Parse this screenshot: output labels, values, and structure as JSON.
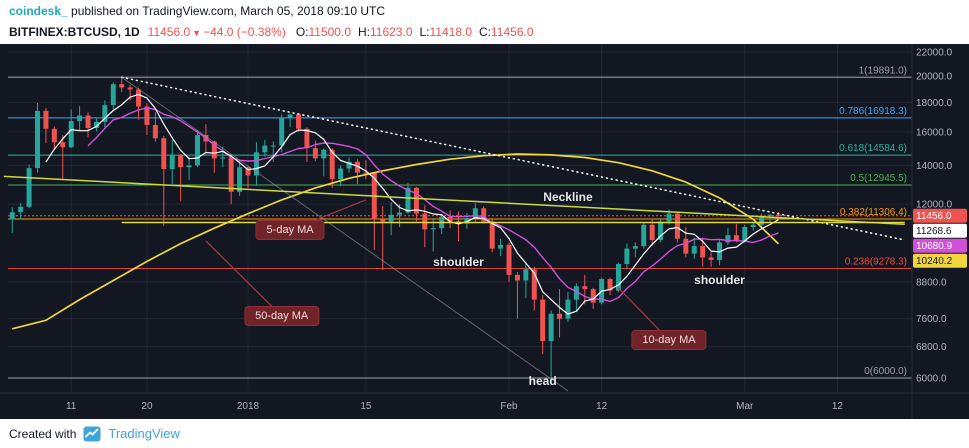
{
  "attribution": {
    "author": "coindesk_",
    "text": " published on TradingView.com, March 05, 2018 09:10 UTC"
  },
  "legend": {
    "symbol": "BITFINEX:BTCUSD, 1D",
    "last": "11456.0",
    "direction": "▼",
    "change": "−44.0 (−0.38%)",
    "ohlc": [
      {
        "label": "O:",
        "value": "11500.0"
      },
      {
        "label": "H:",
        "value": "11623.0"
      },
      {
        "label": "L:",
        "value": "11418.0"
      },
      {
        "label": "C:",
        "value": "11456.0"
      }
    ]
  },
  "footer": {
    "created_with": "Created with",
    "brand": "TradingView"
  },
  "colors": {
    "chart_bg": "#131722",
    "panel_bg": "#ffffff",
    "axis_text": "#b2b5be",
    "grid": "rgba(255,255,255,0.07)",
    "up": "#26a69a",
    "down": "#ef5350",
    "author": "#1fa8bd",
    "brand_blue": "#41a3dc",
    "callout_bg": "#71232a",
    "pointer": "#9c3a3a",
    "annotation_text": "#e8eaed",
    "separator": "#2a2e39"
  },
  "chart_data": {
    "type": "candlestick",
    "symbol": "BITFINEX:BTCUSD",
    "interval": "1D",
    "price_scale": "logarithmic",
    "ylim": [
      5700,
      22400
    ],
    "price_axis": [
      {
        "label": "22000.0",
        "p": 22000
      },
      {
        "label": "20000.0",
        "p": 20000
      },
      {
        "label": "18000.0",
        "p": 18000
      },
      {
        "label": "16000.0",
        "p": 16000
      },
      {
        "label": "14000.0",
        "p": 14000
      },
      {
        "label": "12000.0",
        "p": 12000
      },
      {
        "label": "8800.0",
        "p": 8800
      },
      {
        "label": "7600.0",
        "p": 7600
      },
      {
        "label": "6800.0",
        "p": 6800
      },
      {
        "label": "6000.0",
        "p": 6000
      }
    ],
    "time_axis": [
      {
        "label": "11",
        "d": "2017-12-11"
      },
      {
        "label": "20",
        "d": "2017-12-20"
      },
      {
        "label": "2018",
        "d": "2018-01-01"
      },
      {
        "label": "15",
        "d": "2018-01-15"
      },
      {
        "label": "Feb",
        "d": "2018-02-01"
      },
      {
        "label": "12",
        "d": "2018-02-12"
      },
      {
        "label": "Mar",
        "d": "2018-03-01"
      },
      {
        "label": "12",
        "d": "2018-03-12"
      }
    ],
    "fib_levels": [
      {
        "level": "1",
        "price": 19891.0,
        "label": "1(19891.0)",
        "color": "#9aa0a6"
      },
      {
        "level": "0.786",
        "price": 16918.3,
        "label": "0.786(16918.3)",
        "color": "#42a5f5"
      },
      {
        "level": "0.618",
        "price": 14584.6,
        "label": "0.618(14584.6)",
        "color": "#2bb3a0"
      },
      {
        "level": "0.5",
        "price": 12945.5,
        "label": "0.5(12945.5)",
        "color": "#4caf50"
      },
      {
        "level": "0.382",
        "price": 11306.4,
        "label": "0.382(11306.4)",
        "color": "#ff9800"
      },
      {
        "level": "0.236",
        "price": 9278.3,
        "label": "0.236(9278.3)",
        "color": "#ef4a3c"
      },
      {
        "level": "0",
        "price": 6000.0,
        "label": "0(6000.0)",
        "color": "#9aa0a6"
      }
    ],
    "last_price_line": {
      "price": 11456.0,
      "color": "#ef5350"
    },
    "candles": {
      "start": "2017-12-04",
      "ohlc": [
        [
          11280,
          11850,
          10700,
          11620
        ],
        [
          11620,
          12050,
          11300,
          11870
        ],
        [
          11870,
          14050,
          11800,
          13850
        ],
        [
          13850,
          17950,
          13600,
          17400
        ],
        [
          17400,
          17600,
          15300,
          16200
        ],
        [
          16200,
          16350,
          14950,
          15350
        ],
        [
          15350,
          15800,
          13200,
          15050
        ],
        [
          15050,
          17500,
          15000,
          16700
        ],
        [
          16700,
          17750,
          16100,
          17080
        ],
        [
          17080,
          17300,
          15670,
          16250
        ],
        [
          16250,
          16940,
          16030,
          16650
        ],
        [
          16650,
          18150,
          16300,
          17800
        ],
        [
          17800,
          19500,
          17500,
          19350
        ],
        [
          19350,
          19891,
          18750,
          19100
        ],
        [
          19100,
          19300,
          18150,
          18950
        ],
        [
          18950,
          19100,
          16800,
          17700
        ],
        [
          17700,
          17950,
          15800,
          16450
        ],
        [
          16450,
          17300,
          15400,
          15600
        ],
        [
          15600,
          15750,
          11000,
          13800
        ],
        [
          13800,
          15500,
          13000,
          14600
        ],
        [
          14600,
          14650,
          12160,
          13900
        ],
        [
          13900,
          14500,
          13200,
          14000
        ],
        [
          14000,
          16100,
          13900,
          15800
        ],
        [
          15800,
          16500,
          14700,
          15400
        ],
        [
          15400,
          15450,
          13600,
          14400
        ],
        [
          14400,
          15100,
          13900,
          14450
        ],
        [
          14450,
          14650,
          12000,
          12600
        ],
        [
          12600,
          14300,
          12400,
          13900
        ],
        [
          13900,
          13950,
          12800,
          13450
        ],
        [
          13450,
          15350,
          12950,
          14750
        ],
        [
          14750,
          15500,
          14500,
          15150
        ],
        [
          15150,
          15400,
          14200,
          15150
        ],
        [
          15150,
          17150,
          14750,
          16950
        ],
        [
          16950,
          17200,
          16300,
          17150
        ],
        [
          17150,
          17180,
          16000,
          16200
        ],
        [
          16200,
          16300,
          14200,
          15000
        ],
        [
          15000,
          15450,
          14250,
          14400
        ],
        [
          14400,
          14980,
          13400,
          14900
        ],
        [
          14900,
          15000,
          12800,
          13250
        ],
        [
          13250,
          14000,
          12900,
          13830
        ],
        [
          13830,
          14450,
          13600,
          14200
        ],
        [
          14200,
          14350,
          13000,
          13600
        ],
        [
          13600,
          14300,
          13250,
          13580
        ],
        [
          13580,
          13600,
          10000,
          11300
        ],
        [
          11300,
          11900,
          9222,
          11200
        ],
        [
          11200,
          12100,
          10600,
          11500
        ],
        [
          11500,
          12000,
          10950,
          11600
        ],
        [
          11600,
          13050,
          11550,
          12800
        ],
        [
          12800,
          12850,
          11200,
          11550
        ],
        [
          11550,
          11950,
          10100,
          10850
        ],
        [
          10850,
          11350,
          9927,
          10900
        ],
        [
          10900,
          11550,
          10650,
          11400
        ],
        [
          11400,
          11700,
          10900,
          11200
        ],
        [
          11200,
          11650,
          10350,
          11100
        ],
        [
          11100,
          11580,
          10880,
          11350
        ],
        [
          11350,
          12040,
          11200,
          11800
        ],
        [
          11800,
          11900,
          11100,
          11200
        ],
        [
          11200,
          11300,
          9900,
          10050
        ],
        [
          10050,
          10450,
          9750,
          10200
        ],
        [
          10200,
          10300,
          8800,
          9050
        ],
        [
          9050,
          9150,
          7600,
          8850
        ],
        [
          8850,
          9450,
          8250,
          9250
        ],
        [
          9250,
          9350,
          7850,
          8200
        ],
        [
          8200,
          8350,
          6600,
          6950
        ],
        [
          6950,
          7850,
          6000,
          7750
        ],
        [
          7750,
          8550,
          7050,
          7600
        ],
        [
          7600,
          8450,
          7500,
          8200
        ],
        [
          8200,
          8750,
          7800,
          8650
        ],
        [
          8650,
          9050,
          8050,
          8550
        ],
        [
          8550,
          8600,
          7900,
          8100
        ],
        [
          8100,
          8950,
          8050,
          8900
        ],
        [
          8900,
          8950,
          8350,
          8500
        ],
        [
          8500,
          9500,
          8450,
          9450
        ],
        [
          9450,
          10250,
          9300,
          10050
        ],
        [
          10050,
          10300,
          9700,
          10150
        ],
        [
          10150,
          11150,
          10050,
          11050
        ],
        [
          11050,
          11280,
          10150,
          10400
        ],
        [
          10400,
          11300,
          10300,
          11200
        ],
        [
          11200,
          11750,
          11050,
          11550
        ],
        [
          11550,
          11600,
          10300,
          10450
        ],
        [
          10450,
          10950,
          9700,
          9850
        ],
        [
          9850,
          10500,
          9650,
          10150
        ],
        [
          10150,
          10500,
          9350,
          9700
        ],
        [
          9700,
          9900,
          9350,
          9600
        ],
        [
          9600,
          10450,
          9400,
          10300
        ],
        [
          10300,
          10900,
          10200,
          10600
        ],
        [
          10600,
          11100,
          10300,
          10350
        ],
        [
          10350,
          11050,
          10300,
          10950
        ],
        [
          10950,
          11150,
          10800,
          11050
        ],
        [
          11050,
          11550,
          11000,
          11450
        ],
        [
          11450,
          11550,
          11150,
          11500
        ],
        [
          11500,
          11623,
          11418,
          11456
        ]
      ]
    },
    "moving_averages": [
      {
        "name": "5-day MA",
        "period": 5,
        "color": "#ffffff"
      },
      {
        "name": "10-day MA",
        "period": 10,
        "color": "#d24fd8"
      },
      {
        "name": "50-day MA",
        "period": 50,
        "color": "#f0d63c",
        "points": [
          [
            "2017-12-04",
            7300
          ],
          [
            "2017-12-08",
            7550
          ],
          [
            "2017-12-12",
            8200
          ],
          [
            "2017-12-16",
            8850
          ],
          [
            "2017-12-20",
            9550
          ],
          [
            "2017-12-24",
            10250
          ],
          [
            "2017-12-28",
            10900
          ],
          [
            "2018-01-01",
            11550
          ],
          [
            "2018-01-05",
            12200
          ],
          [
            "2018-01-09",
            12800
          ],
          [
            "2018-01-13",
            13300
          ],
          [
            "2018-01-17",
            13700
          ],
          [
            "2018-01-21",
            14050
          ],
          [
            "2018-01-25",
            14350
          ],
          [
            "2018-01-29",
            14550
          ],
          [
            "2018-02-02",
            14650
          ],
          [
            "2018-02-06",
            14600
          ],
          [
            "2018-02-10",
            14450
          ],
          [
            "2018-02-14",
            14150
          ],
          [
            "2018-02-18",
            13700
          ],
          [
            "2018-02-22",
            13100
          ],
          [
            "2018-02-26",
            12300
          ],
          [
            "2018-03-02",
            11300
          ],
          [
            "2018-03-05",
            10240
          ]
        ]
      }
    ],
    "trendlines": [
      {
        "name": "neckline-dotted",
        "style": "dotted",
        "color": "#ffffff",
        "width": 1.5,
        "from": {
          "d": "2017-12-17",
          "p": 19891
        },
        "to": {
          "d": "2018-03-20",
          "p": 10400
        }
      },
      {
        "name": "left-descending-line",
        "style": "solid",
        "color": "#9598a1",
        "width": 1,
        "opacity": 0.6,
        "from": {
          "d": "2017-12-17",
          "p": 19891
        },
        "to": {
          "d": "2018-02-08",
          "p": 5700
        }
      },
      {
        "name": "support-diagonal",
        "style": "solid",
        "color": "#cbdb3d",
        "width": 1.5,
        "from": {
          "d": "2017-12-03",
          "p": 13400
        },
        "to": {
          "d": "2018-03-20",
          "p": 11070
        }
      },
      {
        "name": "support-horizontal",
        "style": "solid",
        "color": "#e3d935",
        "width": 1.5,
        "from": {
          "d": "2017-12-17",
          "p": 11150
        },
        "to": {
          "d": "2018-03-20",
          "p": 11150
        }
      }
    ],
    "annotations": [
      {
        "text": "Neckline",
        "d": "2018-02-08",
        "p": 12340
      },
      {
        "text": "shoulder",
        "d": "2018-01-26",
        "p": 9530
      },
      {
        "text": "shoulder",
        "d": "2018-02-26",
        "p": 8870
      },
      {
        "text": "head",
        "d": "2018-02-05",
        "p": 5930
      }
    ],
    "callouts": [
      {
        "text": "5-day MA",
        "at": {
          "d": "2018-01-06",
          "p": 10820
        },
        "anchor": {
          "d": "2018-01-15",
          "p": 12200
        }
      },
      {
        "text": "50-day MA",
        "at": {
          "d": "2018-01-05",
          "p": 7680
        },
        "anchor": {
          "d": "2017-12-27",
          "p": 10360
        }
      },
      {
        "text": "10-day MA",
        "at": {
          "d": "2018-02-20",
          "p": 6980
        },
        "anchor": {
          "d": "2018-02-14",
          "p": 8590
        }
      }
    ],
    "price_badges": [
      {
        "value": "11456.0",
        "price": 11456.0,
        "bg": "#ef5350",
        "fg": "#ffffff"
      },
      {
        "value": "11268.6",
        "price": 11268.6,
        "bg": "#ffffff",
        "fg": "#131722"
      },
      {
        "value": "10680.9",
        "price": 10680.9,
        "bg": "#d24fd8",
        "fg": "#ffffff"
      },
      {
        "value": "10240.2",
        "price": 10240.2,
        "bg": "#f0d63c",
        "fg": "#131722"
      }
    ]
  }
}
